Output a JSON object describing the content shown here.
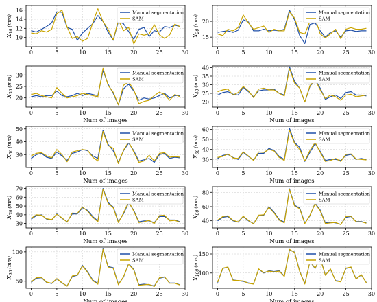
{
  "colors": {
    "manual": "#1f4fa8",
    "sam": "#c9a400",
    "axis": "#000000",
    "grid": "#c8c8c8",
    "background": "#ffffff"
  },
  "chart_data": [
    {
      "type": "line",
      "ylabel": "X10 (mm)",
      "ylabel_base": "X",
      "ylabel_sub": "10",
      "ylabel_unit": "(mm)",
      "xlabel": "",
      "grid": true,
      "legend_position": "top-right",
      "ylim": [
        8,
        17
      ],
      "yticks": [
        10,
        12,
        14,
        16
      ],
      "xlim": [
        -1,
        30
      ],
      "xticks": [
        0,
        5,
        10,
        15,
        20,
        25,
        30
      ],
      "series": [
        {
          "name": "Manual segmentation",
          "values": [
            11.5,
            11.2,
            11.8,
            12.4,
            13.2,
            15.6,
            15.5,
            12.2,
            11.8,
            9.4,
            11.0,
            12.0,
            13.0,
            14.8,
            13.5,
            11.2,
            9.4,
            13.5,
            13.0,
            11.3,
            9.6,
            11.8,
            12.2,
            10.2,
            11.5,
            11.2,
            12.4,
            12.2,
            12.7,
            12.4
          ]
        },
        {
          "name": "SAM",
          "values": [
            11.0,
            10.8,
            11.5,
            11.2,
            11.8,
            15.2,
            16.0,
            12.3,
            9.8,
            10.2,
            9.2,
            9.8,
            13.2,
            16.3,
            13.5,
            11.8,
            9.5,
            13.8,
            11.5,
            12.2,
            8.6,
            10.8,
            10.5,
            10.8,
            12.8,
            10.6,
            9.8,
            10.6,
            12.9,
            12.4
          ]
        }
      ]
    },
    {
      "type": "line",
      "ylabel": "X20 (mm)",
      "ylabel_base": "X",
      "ylabel_sub": "20",
      "ylabel_unit": "(mm)",
      "xlabel": "",
      "grid": true,
      "legend_position": "top-right",
      "ylim": [
        12,
        25
      ],
      "yticks": [
        15,
        20
      ],
      "xlim": [
        -1,
        30
      ],
      "xticks": [
        0,
        5,
        10,
        15,
        20,
        25,
        30
      ],
      "series": [
        {
          "name": "Manual segmentation",
          "values": [
            16.5,
            16.8,
            17.0,
            16.5,
            17.2,
            20.5,
            19.8,
            17.0,
            17.0,
            17.5,
            17.0,
            17.2,
            17.0,
            17.5,
            23.5,
            20.5,
            15.5,
            13.0,
            19.0,
            19.5,
            17.0,
            15.0,
            16.5,
            17.0,
            15.0,
            17.0,
            17.2,
            16.8,
            17.0,
            17.0
          ]
        },
        {
          "name": "SAM",
          "values": [
            16.0,
            15.5,
            17.5,
            17.0,
            18.0,
            22.0,
            19.5,
            17.5,
            18.0,
            18.5,
            16.5,
            17.5,
            17.0,
            17.0,
            23.0,
            21.0,
            16.5,
            16.0,
            20.0,
            21.0,
            16.0,
            14.8,
            16.0,
            17.5,
            14.5,
            17.5,
            18.0,
            17.5,
            17.5,
            17.8
          ]
        }
      ]
    },
    {
      "type": "line",
      "ylabel": "X30 (mm)",
      "ylabel_base": "X",
      "ylabel_sub": "30",
      "ylabel_unit": "(mm)",
      "xlabel": "Num of images",
      "grid": true,
      "legend_position": "top-right",
      "ylim": [
        16,
        34
      ],
      "yticks": [
        20,
        25,
        30
      ],
      "xlim": [
        -1,
        30
      ],
      "xticks": [
        0,
        5,
        10,
        15,
        20,
        25,
        30
      ],
      "series": [
        {
          "name": "Manual segmentation",
          "values": [
            20.5,
            21.0,
            20.5,
            21.0,
            21.0,
            23.0,
            21.0,
            20.5,
            21.0,
            22.0,
            21.0,
            22.0,
            21.5,
            21.0,
            32.0,
            26.0,
            22.0,
            17.0,
            24.0,
            26.0,
            23.0,
            19.0,
            20.0,
            19.5,
            20.0,
            21.0,
            22.0,
            20.0,
            21.0,
            21.0
          ]
        },
        {
          "name": "SAM",
          "values": [
            21.5,
            22.0,
            21.0,
            20.5,
            20.0,
            24.5,
            22.0,
            20.0,
            20.5,
            21.0,
            22.0,
            21.5,
            21.0,
            20.5,
            33.0,
            25.5,
            22.5,
            17.0,
            25.5,
            27.0,
            23.5,
            17.5,
            18.5,
            19.0,
            21.0,
            22.5,
            21.5,
            19.0,
            21.5,
            20.5
          ]
        }
      ]
    },
    {
      "type": "line",
      "ylabel": "X40 (mm)",
      "ylabel_base": "X",
      "ylabel_sub": "40",
      "ylabel_unit": "(mm)",
      "xlabel": "Num of images",
      "grid": true,
      "legend_position": "top-right",
      "ylim": [
        17,
        41
      ],
      "yticks": [
        20,
        25,
        30,
        35,
        40
      ],
      "xlim": [
        -1,
        30
      ],
      "xticks": [
        0,
        5,
        10,
        15,
        20,
        25,
        30
      ],
      "series": [
        {
          "name": "Manual segmentation",
          "values": [
            24.0,
            25.5,
            26.0,
            24.5,
            24.0,
            28.5,
            26.0,
            23.0,
            26.5,
            27.0,
            27.0,
            27.5,
            25.0,
            24.0,
            40.5,
            32.0,
            28.0,
            20.0,
            29.0,
            33.0,
            28.0,
            21.5,
            23.0,
            24.0,
            22.0,
            25.5,
            26.0,
            24.0,
            24.0,
            23.5
          ]
        },
        {
          "name": "SAM",
          "values": [
            26.0,
            27.0,
            27.5,
            24.0,
            25.5,
            29.0,
            26.5,
            22.5,
            27.5,
            28.0,
            27.0,
            27.0,
            25.0,
            23.5,
            39.5,
            31.0,
            28.0,
            20.0,
            29.5,
            33.0,
            27.0,
            22.0,
            24.0,
            23.0,
            21.0,
            24.0,
            24.5,
            23.0,
            23.5,
            24.0
          ]
        }
      ]
    },
    {
      "type": "line",
      "ylabel": "X50 (mm)",
      "ylabel_base": "X",
      "ylabel_sub": "50",
      "ylabel_unit": "(mm)",
      "xlabel": "Num of images",
      "grid": true,
      "legend_position": "top-right",
      "ylim": [
        20,
        52
      ],
      "yticks": [
        30,
        40,
        50
      ],
      "xlim": [
        -1,
        30
      ],
      "xticks": [
        0,
        5,
        10,
        15,
        20,
        25,
        30
      ],
      "series": [
        {
          "name": "Manual segmentation",
          "values": [
            27.0,
            30.0,
            31.0,
            28.0,
            27.0,
            32.0,
            29.0,
            25.5,
            31.0,
            32.0,
            34.0,
            33.0,
            29.0,
            27.0,
            49.0,
            38.0,
            33.0,
            24.0,
            33.0,
            39.0,
            33.0,
            25.0,
            26.0,
            27.0,
            24.0,
            30.0,
            31.0,
            27.0,
            28.0,
            27.5
          ]
        },
        {
          "name": "SAM",
          "values": [
            29.0,
            31.0,
            31.5,
            29.0,
            27.5,
            34.0,
            30.0,
            24.5,
            32.0,
            33.0,
            34.0,
            33.5,
            28.0,
            25.0,
            48.0,
            37.0,
            35.0,
            23.0,
            33.5,
            40.0,
            32.0,
            24.0,
            25.0,
            29.5,
            25.0,
            31.0,
            31.5,
            28.0,
            28.5,
            28.0
          ]
        }
      ]
    },
    {
      "type": "line",
      "ylabel": "X60 (mm)",
      "ylabel_base": "X",
      "ylabel_sub": "60",
      "ylabel_unit": "(mm)",
      "xlabel": "Num of images",
      "grid": true,
      "legend_position": "top-right",
      "ylim": [
        22,
        63
      ],
      "yticks": [
        30,
        40,
        50,
        60
      ],
      "xlim": [
        -1,
        30
      ],
      "xticks": [
        0,
        5,
        10,
        15,
        20,
        25,
        30
      ],
      "series": [
        {
          "name": "Manual segmentation",
          "values": [
            31.0,
            34.0,
            35.0,
            32.0,
            30.0,
            37.0,
            33.0,
            29.5,
            36.0,
            36.0,
            41.0,
            39.0,
            33.0,
            30.0,
            61.0,
            47.0,
            42.0,
            28.0,
            37.0,
            46.0,
            38.0,
            29.0,
            30.0,
            30.0,
            29.0,
            34.0,
            35.0,
            30.0,
            31.0,
            30.0
          ]
        },
        {
          "name": "SAM",
          "values": [
            32.0,
            33.0,
            35.5,
            31.5,
            31.0,
            37.5,
            33.5,
            29.0,
            37.5,
            37.0,
            40.0,
            38.5,
            32.0,
            29.0,
            59.0,
            46.0,
            40.0,
            28.5,
            39.0,
            47.0,
            37.0,
            28.0,
            29.0,
            31.0,
            28.0,
            35.0,
            35.5,
            30.5,
            30.0,
            29.5
          ]
        }
      ]
    },
    {
      "type": "line",
      "ylabel": "X70 (mm)",
      "ylabel_base": "X",
      "ylabel_sub": "70",
      "ylabel_unit": "(mm)",
      "xlabel": "Num of images",
      "grid": true,
      "legend_position": "top-right",
      "ylim": [
        25,
        72
      ],
      "yticks": [
        30,
        40,
        50,
        60,
        70
      ],
      "xlim": [
        -1,
        30
      ],
      "xticks": [
        0,
        5,
        10,
        15,
        20,
        25,
        30
      ],
      "series": [
        {
          "name": "Manual segmentation",
          "values": [
            35.0,
            39.0,
            40.0,
            35.0,
            34.0,
            41.0,
            36.0,
            32.0,
            41.0,
            41.0,
            48.0,
            45.0,
            38.0,
            33.0,
            70.0,
            54.0,
            49.0,
            32.0,
            41.0,
            54.0,
            45.0,
            32.0,
            33.0,
            33.0,
            31.0,
            38.0,
            38.0,
            34.0,
            34.0,
            32.0
          ]
        },
        {
          "name": "SAM",
          "values": [
            36.0,
            40.0,
            39.5,
            35.5,
            34.5,
            40.5,
            36.5,
            31.5,
            42.0,
            41.5,
            49.0,
            44.0,
            37.0,
            32.0,
            69.0,
            53.0,
            48.0,
            31.0,
            42.0,
            55.0,
            44.0,
            31.0,
            32.0,
            33.5,
            30.0,
            39.0,
            39.5,
            33.0,
            33.5,
            31.5
          ]
        }
      ]
    },
    {
      "type": "line",
      "ylabel": "X80 (mm)",
      "ylabel_base": "X",
      "ylabel_sub": "80",
      "ylabel_unit": "(mm)",
      "xlabel": "Num of images",
      "grid": true,
      "legend_position": "top-right",
      "ylim": [
        30,
        88
      ],
      "yticks": [
        40,
        60,
        80
      ],
      "xlim": [
        -1,
        30
      ],
      "xticks": [
        0,
        5,
        10,
        15,
        20,
        25,
        30
      ],
      "series": [
        {
          "name": "Manual segmentation",
          "values": [
            40.0,
            45.0,
            46.0,
            40.0,
            38.0,
            46.0,
            40.0,
            36.0,
            47.0,
            48.0,
            60.0,
            52.0,
            42.0,
            38.0,
            85.0,
            62.0,
            58.0,
            37.0,
            47.0,
            65.0,
            55.0,
            37.0,
            38.0,
            37.0,
            35.0,
            45.0,
            46.0,
            39.0,
            39.0,
            37.0
          ]
        },
        {
          "name": "SAM",
          "values": [
            41.0,
            46.0,
            47.0,
            40.5,
            38.5,
            46.5,
            40.5,
            35.5,
            48.0,
            48.5,
            59.0,
            51.0,
            41.0,
            37.0,
            84.0,
            61.0,
            57.0,
            36.0,
            48.0,
            64.0,
            54.0,
            36.0,
            37.0,
            37.5,
            34.5,
            46.0,
            46.5,
            38.5,
            38.5,
            36.5
          ]
        }
      ]
    },
    {
      "type": "line",
      "ylabel": "X90 (mm)",
      "ylabel_base": "X",
      "ylabel_sub": "90",
      "ylabel_unit": "(mm)",
      "xlabel": "Num of images",
      "grid": true,
      "legend_position": "top-right",
      "ylim": [
        38,
        108
      ],
      "yticks": [
        50,
        100
      ],
      "xlim": [
        -1,
        30
      ],
      "xticks": [
        0,
        5,
        10,
        15,
        20,
        25,
        30
      ],
      "series": [
        {
          "name": "Manual segmentation",
          "values": [
            48.0,
            55.0,
            56.0,
            48.0,
            46.0,
            54.0,
            47.0,
            42.0,
            58.0,
            60.0,
            77.0,
            66.0,
            52.0,
            46.0,
            105.0,
            75.0,
            73.0,
            45.0,
            57.0,
            80.0,
            70.0,
            44.0,
            45.0,
            44.0,
            42.0,
            55.0,
            57.0,
            47.0,
            47.0,
            44.0
          ]
        },
        {
          "name": "SAM",
          "values": [
            49.0,
            56.0,
            56.5,
            48.5,
            46.5,
            54.5,
            47.5,
            41.5,
            59.0,
            60.5,
            76.0,
            65.0,
            51.0,
            45.0,
            104.0,
            74.0,
            72.0,
            44.0,
            58.0,
            79.0,
            69.0,
            43.0,
            44.0,
            44.5,
            41.0,
            56.0,
            57.5,
            46.5,
            46.5,
            43.5
          ]
        }
      ]
    },
    {
      "type": "line",
      "ylabel": "X100 (mm)",
      "ylabel_base": "X",
      "ylabel_sub": "100",
      "ylabel_unit": "(mm)",
      "xlabel": "Num of images",
      "grid": true,
      "legend_position": "top-right",
      "ylim": [
        60,
        168
      ],
      "yticks": [
        100,
        150
      ],
      "xlim": [
        -1,
        30
      ],
      "xticks": [
        0,
        5,
        10,
        15,
        20,
        25,
        30
      ],
      "series": [
        {
          "name": "Manual segmentation",
          "values": [
            75.0,
            112.0,
            115.0,
            82.0,
            80.0,
            78.0,
            74.0,
            72.0,
            110.0,
            100.0,
            106.0,
            104.0,
            106.0,
            92.0,
            160.0,
            155.0,
            105.0,
            72.0,
            130.0,
            112.0,
            140.0,
            95.0,
            110.0,
            80.0,
            78.0,
            112.0,
            115.0,
            85.0,
            95.0,
            75.0
          ]
        },
        {
          "name": "SAM",
          "values": [
            76.0,
            113.0,
            116.0,
            81.0,
            80.5,
            79.0,
            73.0,
            71.0,
            111.0,
            101.0,
            105.0,
            103.0,
            105.0,
            91.0,
            162.0,
            154.0,
            104.0,
            71.0,
            131.0,
            113.0,
            138.0,
            94.0,
            111.0,
            79.0,
            77.0,
            113.0,
            116.0,
            84.0,
            96.0,
            74.0
          ]
        }
      ]
    }
  ]
}
